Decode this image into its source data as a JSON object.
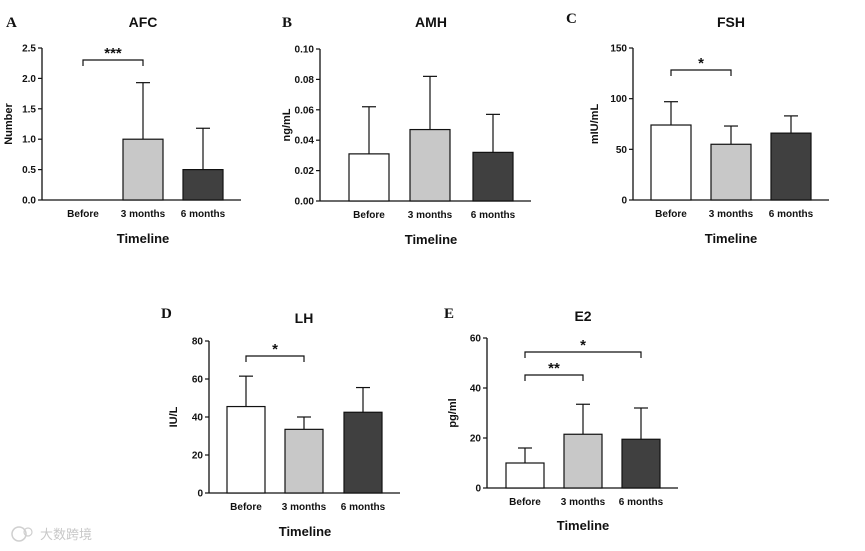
{
  "watermark": "大数跨境",
  "chart_data": [
    {
      "type": "bar",
      "panel": "A",
      "title": "AFC",
      "xlabel": "Timeline",
      "ylabel": "Number",
      "categories": [
        "Before",
        "3 months",
        "6 months"
      ],
      "values": [
        0,
        1.0,
        0.5
      ],
      "errors": [
        0,
        0.93,
        0.68
      ],
      "ylim": [
        0,
        2.5
      ],
      "yticks": [
        "0.0",
        "0.5",
        "1.0",
        "1.5",
        "2.0",
        "2.5"
      ],
      "bar_colors": [
        "#ffffff",
        "#c8c8c8",
        "#404040"
      ],
      "significance": [
        {
          "from": 0,
          "to": 1,
          "label": "***"
        }
      ]
    },
    {
      "type": "bar",
      "panel": "B",
      "title": "AMH",
      "xlabel": "Timeline",
      "ylabel": "ng/mL",
      "categories": [
        "Before",
        "3 months",
        "6 months"
      ],
      "values": [
        0.031,
        0.047,
        0.032
      ],
      "errors": [
        0.031,
        0.035,
        0.025
      ],
      "ylim": [
        0,
        0.1
      ],
      "yticks": [
        "0.00",
        "0.02",
        "0.04",
        "0.06",
        "0.08",
        "0.10"
      ],
      "bar_colors": [
        "#ffffff",
        "#c8c8c8",
        "#404040"
      ],
      "significance": []
    },
    {
      "type": "bar",
      "panel": "C",
      "title": "FSH",
      "xlabel": "Timeline",
      "ylabel": "mIU/mL",
      "categories": [
        "Before",
        "3 months",
        "6 months"
      ],
      "values": [
        74,
        55,
        66
      ],
      "errors": [
        23,
        18,
        17
      ],
      "ylim": [
        0,
        150
      ],
      "yticks": [
        "0",
        "50",
        "100",
        "150"
      ],
      "bar_colors": [
        "#ffffff",
        "#c8c8c8",
        "#404040"
      ],
      "significance": [
        {
          "from": 0,
          "to": 1,
          "label": "*"
        }
      ]
    },
    {
      "type": "bar",
      "panel": "D",
      "title": "LH",
      "xlabel": "Timeline",
      "ylabel": "IU/L",
      "categories": [
        "Before",
        "3 months",
        "6 months"
      ],
      "values": [
        45.5,
        33.5,
        42.5
      ],
      "errors": [
        16,
        6.5,
        13
      ],
      "ylim": [
        0,
        80
      ],
      "yticks": [
        "0",
        "20",
        "40",
        "60",
        "80"
      ],
      "bar_colors": [
        "#ffffff",
        "#c8c8c8",
        "#404040"
      ],
      "significance": [
        {
          "from": 0,
          "to": 1,
          "label": "*"
        }
      ]
    },
    {
      "type": "bar",
      "panel": "E",
      "title": "E2",
      "xlabel": "Timeline",
      "ylabel": "pg/ml",
      "categories": [
        "Before",
        "3 months",
        "6 months"
      ],
      "values": [
        10,
        21.5,
        19.5
      ],
      "errors": [
        6,
        12,
        12.5
      ],
      "ylim": [
        0,
        60
      ],
      "yticks": [
        "0",
        "20",
        "40",
        "60"
      ],
      "bar_colors": [
        "#ffffff",
        "#c8c8c8",
        "#404040"
      ],
      "significance": [
        {
          "from": 0,
          "to": 1,
          "label": "**"
        },
        {
          "from": 0,
          "to": 2,
          "label": "*"
        }
      ]
    }
  ]
}
